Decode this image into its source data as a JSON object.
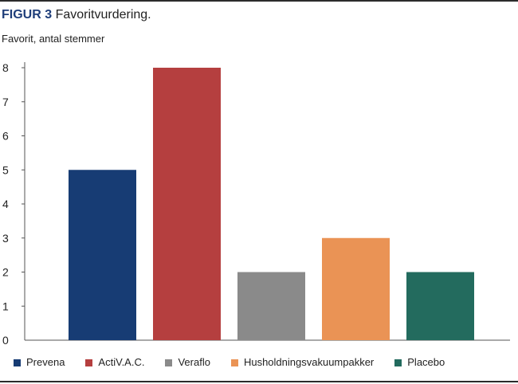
{
  "figure": {
    "label": "FIGUR 3",
    "title": "Favoritvurdering.",
    "y_unit_label": "Favorit, antal stemmer"
  },
  "colors": {
    "title_label": "#1f3e7a",
    "axis": "#555555",
    "rules": "#2b2b2b"
  },
  "chart_data": {
    "type": "bar",
    "categories": [
      "Prevena",
      "ActiV.A.C.",
      "Veraflo",
      "Husholdningsvakuumpakker",
      "Placebo"
    ],
    "values": [
      5,
      8,
      2,
      3,
      2
    ],
    "colors": [
      "#173c74",
      "#b53f3f",
      "#8a8a8a",
      "#ea9355",
      "#236b5e"
    ],
    "ylabel": "Favorit, antal stemmer",
    "ylim": [
      0,
      8
    ],
    "yticks": [
      "0",
      "1",
      "2",
      "3",
      "4",
      "5",
      "6",
      "7",
      "8"
    ],
    "grid": false,
    "legend_position": "bottom"
  },
  "legend": {
    "items": [
      {
        "label": "Prevena",
        "color": "#173c74"
      },
      {
        "label": "ActiV.A.C.",
        "color": "#b53f3f"
      },
      {
        "label": "Veraflo",
        "color": "#8a8a8a"
      },
      {
        "label": "Husholdningsvakuumpakker",
        "color": "#ea9355"
      },
      {
        "label": "Placebo",
        "color": "#236b5e"
      }
    ]
  }
}
